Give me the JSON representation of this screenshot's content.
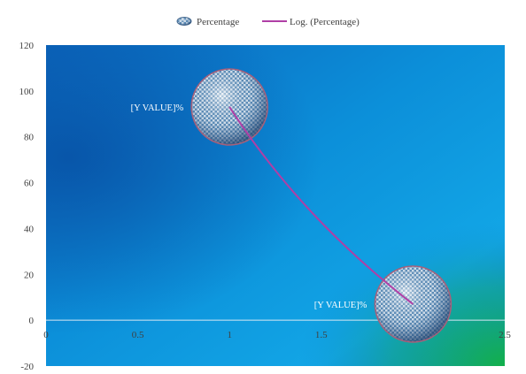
{
  "chart_data": {
    "type": "scatter",
    "title": "",
    "xlabel": "",
    "ylabel": "",
    "xlim": [
      0,
      2.5
    ],
    "ylim": [
      -20,
      120
    ],
    "x_ticks": [
      0,
      0.5,
      1,
      1.5,
      2,
      2.5
    ],
    "y_ticks": [
      -20,
      0,
      20,
      40,
      60,
      80,
      100,
      120
    ],
    "x_tick_labels": [
      "0",
      "0.5",
      "1",
      "1.5",
      "2",
      "2.5"
    ],
    "y_tick_labels": [
      "-20",
      "0",
      "20",
      "40",
      "60",
      "80",
      "100",
      "120"
    ],
    "grid": false,
    "legend_position": "top",
    "series": [
      {
        "name": "Percentage",
        "kind": "bubble",
        "points": [
          {
            "x": 1,
            "y": 93,
            "label": "[Y VALUE]%"
          },
          {
            "x": 2,
            "y": 7,
            "label": "[Y VALUE]%"
          }
        ]
      },
      {
        "name": "Log. (Percentage)",
        "kind": "trendline",
        "trend": "logarithmic",
        "color": "#b03fa6",
        "x_range": [
          1,
          2
        ]
      }
    ]
  },
  "colors": {
    "plot_background_top": "#0a5fb4",
    "plot_background_mid": "#0c8fd8",
    "plot_background_corner": "#0fae5a",
    "trendline": "#b03fa6",
    "bubble_rim": "#a8607a",
    "zero_line": "#d8e8f4"
  },
  "legend": {
    "bubble_icon": "bubble-icon",
    "line_icon": "trendline-swatch-icon"
  }
}
